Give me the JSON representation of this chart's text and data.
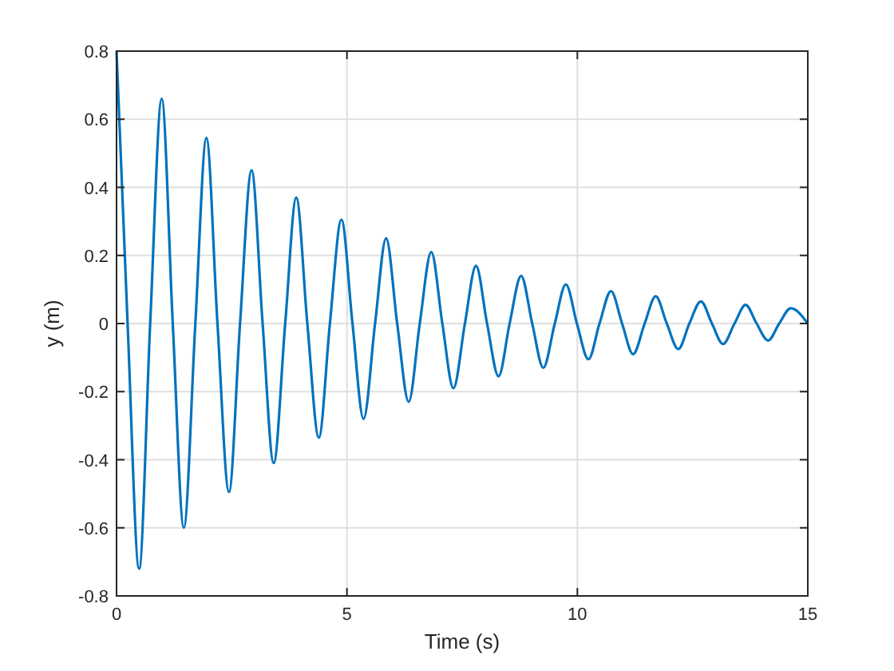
{
  "chart_data": {
    "type": "line",
    "xlabel": "Time (s)",
    "ylabel": "y (m)",
    "x": [
      0,
      0.24,
      0.49,
      0.73,
      0.98,
      1.22,
      1.46,
      1.71,
      1.95,
      2.19,
      2.44,
      2.68,
      2.93,
      3.17,
      3.41,
      3.66,
      3.9,
      4.14,
      4.39,
      4.63,
      4.88,
      5.12,
      5.36,
      5.61,
      5.85,
      6.09,
      6.34,
      6.58,
      6.83,
      7.07,
      7.31,
      7.56,
      7.8,
      8.04,
      8.29,
      8.53,
      8.78,
      9.02,
      9.26,
      9.51,
      9.75,
      9.99,
      10.24,
      10.48,
      10.73,
      10.97,
      11.21,
      11.46,
      11.7,
      11.94,
      12.19,
      12.43,
      12.68,
      12.92,
      13.16,
      13.41,
      13.65,
      13.89,
      14.14,
      14.38,
      14.63,
      15
    ],
    "series": [
      {
        "color": "#0072bd",
        "values": [
          0.8,
          0,
          -0.72,
          0,
          0.66,
          0,
          -0.6,
          0,
          0.545,
          0,
          -0.495,
          0,
          0.45,
          0,
          -0.41,
          0,
          0.37,
          0,
          -0.335,
          0,
          0.305,
          0,
          -0.28,
          0,
          0.25,
          0,
          -0.23,
          0,
          0.21,
          0,
          -0.19,
          0,
          0.17,
          0,
          -0.155,
          0,
          0.14,
          0,
          -0.13,
          0,
          0.115,
          0,
          -0.105,
          0,
          0.095,
          0,
          -0.09,
          0,
          0.08,
          0,
          -0.075,
          0,
          0.065,
          0,
          -0.06,
          0,
          0.055,
          0,
          -0.05,
          0,
          0.045,
          0
        ]
      }
    ],
    "xlim": [
      0,
      15
    ],
    "xticks": [
      0,
      5,
      10,
      15
    ],
    "ylim": [
      -0.8,
      0.8
    ],
    "yticks": [
      -0.8,
      -0.6,
      -0.4,
      -0.2,
      0,
      0.2,
      0.4,
      0.6,
      0.8
    ],
    "grid": true,
    "marker": "none",
    "line_style": "solid"
  }
}
